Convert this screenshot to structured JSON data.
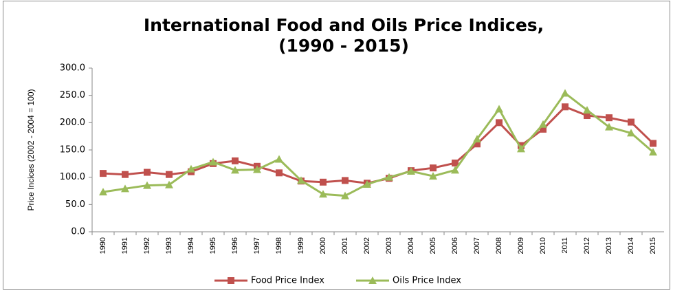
{
  "chart_data": {
    "type": "line",
    "title": [
      "International Food and Oils Price Indices,",
      "(1990 - 2015)"
    ],
    "y_label": "Price Incices (2002 - 2004 = 100)",
    "categories": [
      "1990",
      "1991",
      "1992",
      "1993",
      "1994",
      "1995",
      "1996",
      "1997",
      "1998",
      "1999",
      "2000",
      "2001",
      "2002",
      "2003",
      "2004",
      "2005",
      "2006",
      "2007",
      "2008",
      "2009",
      "2010",
      "2011",
      "2012",
      "2013",
      "2014",
      "2015"
    ],
    "series": [
      {
        "name": "Food Price Index",
        "color": "#c0504d",
        "marker": "square",
        "values": [
          107,
          105,
          109,
          105,
          110,
          125,
          130,
          120,
          108,
          93,
          91,
          94,
          89,
          98,
          112,
          117,
          126,
          161,
          200,
          158,
          188,
          229,
          213,
          209,
          201,
          162
        ]
      },
      {
        "name": "Oils Price Index",
        "color": "#9bbb59",
        "marker": "triangle",
        "values": [
          73,
          79,
          85,
          86,
          115,
          128,
          113,
          114,
          133,
          94,
          69,
          66,
          87,
          100,
          111,
          102,
          113,
          170,
          225,
          152,
          197,
          254,
          223,
          192,
          181,
          146
        ]
      }
    ],
    "ylim": [
      0,
      300
    ],
    "yticks": [
      {
        "value": 0,
        "label": "0.0"
      },
      {
        "value": 50,
        "label": "50.0"
      },
      {
        "value": 100,
        "label": "100.0"
      },
      {
        "value": 150,
        "label": "150.0"
      },
      {
        "value": 200,
        "label": "200.0"
      },
      {
        "value": 250,
        "label": "250.0"
      },
      {
        "value": 300,
        "label": "300.0"
      }
    ],
    "legend": "bottom"
  }
}
